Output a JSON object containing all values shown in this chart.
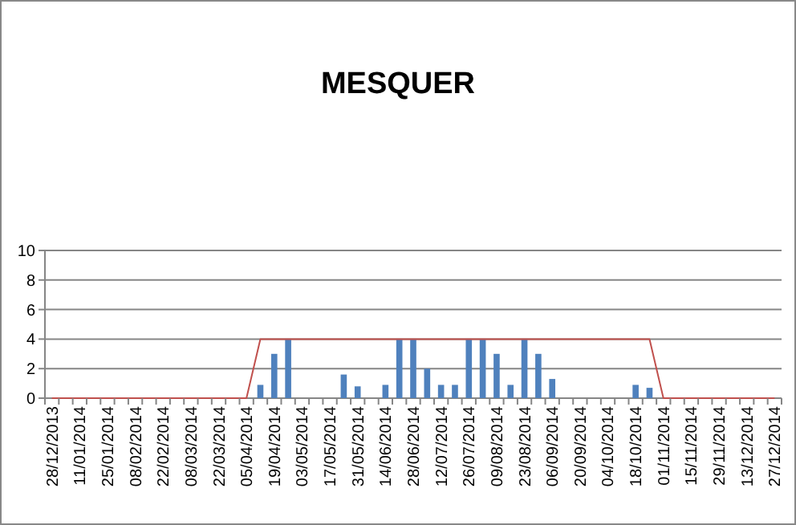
{
  "chart_data": {
    "type": "bar",
    "title": "MESQUER",
    "categories": [
      "28/12/2013",
      null,
      "11/01/2014",
      null,
      "25/01/2014",
      null,
      "08/02/2014",
      null,
      "22/02/2014",
      null,
      "08/03/2014",
      null,
      "22/03/2014",
      null,
      "05/04/2014",
      null,
      "19/04/2014",
      null,
      "03/05/2014",
      null,
      "17/05/2014",
      null,
      "31/05/2014",
      null,
      "14/06/2014",
      null,
      "28/06/2014",
      null,
      "12/07/2014",
      null,
      "26/07/2014",
      null,
      "09/08/2014",
      null,
      "23/08/2014",
      null,
      "06/09/2014",
      null,
      "20/09/2014",
      null,
      "04/10/2014",
      null,
      "18/10/2014",
      null,
      "01/11/2014",
      null,
      "15/11/2014",
      null,
      "29/11/2014",
      null,
      "13/12/2014",
      null,
      "27/12/2014"
    ],
    "series": [
      {
        "color": "#4f81bd",
        "values": [
          0,
          0,
          0,
          0,
          0,
          0,
          0,
          0,
          0,
          0,
          0,
          0,
          0,
          0,
          0,
          0.9,
          3,
          4,
          0,
          0,
          0,
          1.6,
          0.8,
          0,
          0.9,
          4,
          4,
          2,
          0.9,
          0.9,
          4,
          4,
          3,
          0.9,
          4,
          3,
          1.3,
          0,
          0,
          0,
          0,
          0,
          0.9,
          0.7,
          0,
          0,
          0,
          0,
          0,
          0,
          0,
          0,
          0
        ]
      },
      {
        "type": "line",
        "color": "#c0504d",
        "values": [
          0,
          0,
          0,
          0,
          0,
          0,
          0,
          0,
          0,
          0,
          0,
          0,
          0,
          0,
          0,
          4,
          4,
          4,
          4,
          4,
          4,
          4,
          4,
          4,
          4,
          4,
          4,
          4,
          4,
          4,
          4,
          4,
          4,
          4,
          4,
          4,
          4,
          4,
          4,
          4,
          4,
          4,
          4,
          4,
          0,
          0,
          0,
          0,
          0,
          0,
          0,
          0,
          0
        ]
      }
    ],
    "ylim": [
      0,
      10
    ],
    "yticks": [
      0,
      2,
      4,
      6,
      8,
      10
    ],
    "grid": "y"
  }
}
